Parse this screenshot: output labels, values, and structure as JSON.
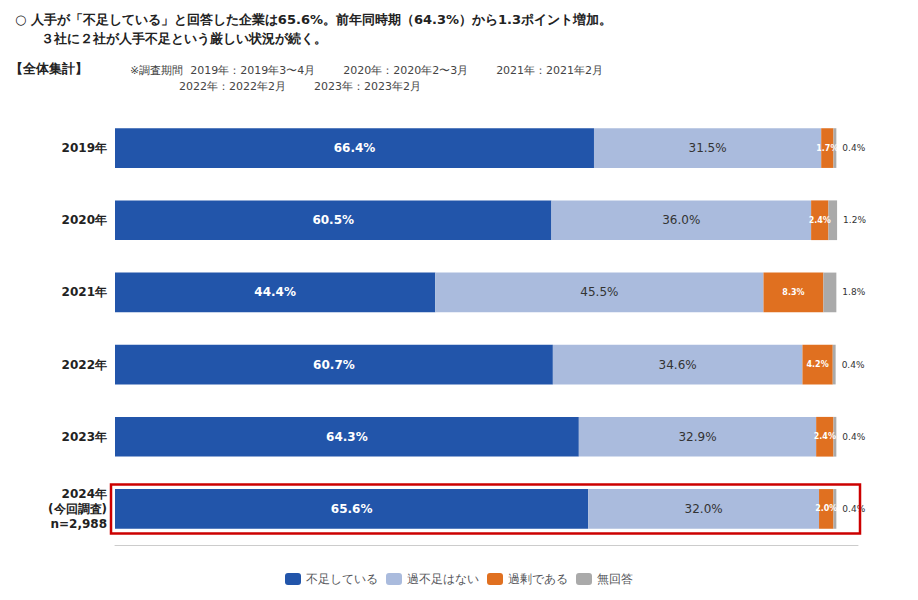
{
  "chart_data": {
    "type": "bar",
    "title": "○ 人手が「不足している」と回答した企業は65.6%。前年同時期（64.3%）から1.3ポイント増加。",
    "subtitle": "　　３社に２社が人手不足という厳しい状況が続く。",
    "annotations": [
      "【全体集計】",
      "※調査期間  2019年：2019年3〜4月        2020年：2020年2〜3月        2021年：2021年2月\n              2022年：2022年2月        2023年：2023年2月"
    ],
    "categories": [
      "2019年",
      "2020年",
      "2021年",
      "2022年",
      "2023年",
      "2024年\n(今回調査)\nn=2,988"
    ],
    "series": [
      {
        "name": "不足している",
        "color": "#2255aa",
        "values": [
          66.4,
          60.5,
          44.4,
          60.7,
          64.3,
          65.6
        ],
        "value_labels": [
          "66.4%",
          "60.5%",
          "44.4%",
          "60.7%",
          "64.3%",
          "65.6%"
        ]
      },
      {
        "name": "過不足はない",
        "color": "#aabbdd",
        "values": [
          31.5,
          36.0,
          45.5,
          34.6,
          32.9,
          32.0
        ],
        "value_labels": [
          "31.5%",
          "36.0%",
          "45.5%",
          "34.6%",
          "32.9%",
          "32.0%"
        ]
      },
      {
        "name": "過剰である",
        "color": "#e07020",
        "values": [
          1.7,
          2.4,
          8.3,
          4.2,
          2.4,
          2.0
        ],
        "value_labels": [
          "1.7%",
          "2.4%",
          "8.3%",
          "4.2%",
          "2.4%",
          "2.0%"
        ]
      },
      {
        "name": "無回答",
        "color": "#aaaaaa",
        "values": [
          0.4,
          1.2,
          1.8,
          0.4,
          0.4,
          0.4
        ],
        "value_labels": [
          "0.4%",
          "1.2%",
          "1.8%",
          "0.4%",
          "0.4%",
          "0.4%"
        ]
      }
    ],
    "xlim": [
      0,
      103
    ],
    "orientation": "horizontal",
    "stacked": true,
    "data_labels": true,
    "tick_labels": "y",
    "grid": false,
    "legend": "bottom",
    "highlight": {
      "category": "2024年\n(今回調査)\nn=2,988",
      "color": "#cc0000"
    }
  }
}
